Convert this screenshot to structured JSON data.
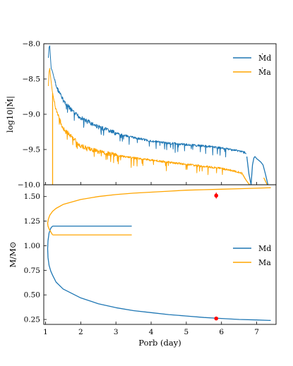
{
  "chart_data": [
    {
      "type": "line",
      "panel": "top",
      "xlabel": "",
      "ylabel": "log10|Ṁ|",
      "xlim": [
        0.95,
        7.55
      ],
      "ylim": [
        -10.0,
        -8.0
      ],
      "yticks": [
        -8.0,
        -8.5,
        -9.0,
        -9.5,
        -10.0
      ],
      "ytick_labels": [
        "−8.0",
        "−8.5",
        "−9.0",
        "−9.5",
        "−10.0"
      ],
      "legend_position": "top-right",
      "grid": false,
      "series": [
        {
          "name": "Ṁd",
          "color": "#1f77b4",
          "noisy": true,
          "x": [
            1.08,
            1.1,
            1.12,
            1.14,
            1.16,
            1.18,
            1.2,
            1.3,
            1.5,
            1.8,
            2.0,
            2.5,
            3.0,
            3.5,
            4.0,
            4.5,
            5.0,
            5.5,
            6.0,
            6.5,
            6.7
          ],
          "y": [
            -8.2,
            -8.05,
            -8.03,
            -8.2,
            -8.35,
            -8.37,
            -8.4,
            -8.6,
            -8.8,
            -8.98,
            -9.05,
            -9.18,
            -9.27,
            -9.33,
            -9.38,
            -9.41,
            -9.43,
            -9.45,
            -9.48,
            -9.52,
            -9.55
          ]
        },
        {
          "name": "Ṁd (late branch)",
          "color": "#1f77b4",
          "noisy": false,
          "x": [
            6.72,
            6.78,
            6.84,
            6.88,
            6.92,
            6.95,
            7.0,
            7.05,
            7.12,
            7.18,
            7.25,
            7.32
          ],
          "y": [
            -9.6,
            -9.85,
            -10.0,
            -9.72,
            -9.62,
            -9.6,
            -9.63,
            -9.65,
            -9.68,
            -9.72,
            -9.85,
            -10.0
          ]
        },
        {
          "name": "Ṁa",
          "color": "#ffa500",
          "noisy": true,
          "x": [
            1.08,
            1.1,
            1.12,
            1.15,
            1.2,
            1.3,
            1.5,
            2.0,
            2.5,
            3.0,
            3.5,
            4.0,
            4.5,
            5.0,
            5.5,
            6.0,
            6.5,
            6.6
          ],
          "y": [
            -8.6,
            -8.4,
            -8.35,
            -8.5,
            -8.7,
            -8.95,
            -9.2,
            -9.45,
            -9.53,
            -9.58,
            -9.62,
            -9.65,
            -9.68,
            -9.71,
            -9.74,
            -9.77,
            -9.82,
            -9.85
          ]
        },
        {
          "name": "Ṁa (late branch)",
          "color": "#ffa500",
          "noisy": false,
          "x": [
            6.6,
            6.68,
            6.75,
            6.8
          ],
          "y": [
            -9.85,
            -9.92,
            -9.97,
            -10.0
          ]
        },
        {
          "name": "Ṁa (drop)",
          "color": "#ffa500",
          "noisy": false,
          "x": [
            1.2,
            1.2
          ],
          "y": [
            -8.7,
            -10.0
          ]
        },
        {
          "name": "Ṁa (tail)",
          "color": "#ffa500",
          "noisy": false,
          "x": [
            7.2,
            7.25,
            7.3
          ],
          "y": [
            -9.9,
            -9.95,
            -10.0
          ]
        }
      ],
      "legend": [
        {
          "label": "Ṁd",
          "color": "#1f77b4"
        },
        {
          "label": "Ṁa",
          "color": "#ffa500"
        }
      ]
    },
    {
      "type": "line",
      "panel": "bottom",
      "xlabel": "Porb (day)",
      "ylabel": "M/M⊙",
      "xlim": [
        0.95,
        7.55
      ],
      "ylim": [
        0.2,
        1.62
      ],
      "xticks": [
        1,
        2,
        3,
        4,
        5,
        6,
        7
      ],
      "yticks": [
        0.25,
        0.5,
        0.75,
        1.0,
        1.25,
        1.5
      ],
      "ytick_labels": [
        "0.25",
        "0.50",
        "0.75",
        "1.00",
        "1.25",
        "1.50"
      ],
      "legend_position": "center-right",
      "grid": false,
      "series": [
        {
          "name": "Md",
          "color": "#1f77b4",
          "x": [
            1.2,
            1.15,
            1.1,
            1.07,
            1.06,
            1.07,
            1.1,
            1.15,
            1.2,
            1.3,
            1.5,
            2.0,
            2.5,
            3.0,
            3.5,
            4.0,
            4.5,
            5.0,
            5.5,
            6.0,
            6.5,
            7.0,
            7.4
          ],
          "y": [
            1.2,
            1.18,
            1.13,
            1.05,
            0.97,
            0.88,
            0.8,
            0.74,
            0.7,
            0.63,
            0.56,
            0.47,
            0.41,
            0.37,
            0.34,
            0.32,
            0.3,
            0.285,
            0.27,
            0.26,
            0.25,
            0.245,
            0.24
          ]
        },
        {
          "name": "Md (plateau)",
          "color": "#1f77b4",
          "x": [
            1.2,
            3.45
          ],
          "y": [
            1.2,
            1.2
          ]
        },
        {
          "name": "Ma",
          "color": "#ffa500",
          "x": [
            1.2,
            1.15,
            1.1,
            1.07,
            1.06,
            1.08,
            1.12,
            1.2,
            1.3,
            1.5,
            2.0,
            2.5,
            3.0,
            3.5,
            4.0,
            4.5,
            5.0,
            5.5,
            6.0,
            6.5,
            7.0,
            7.4
          ],
          "y": [
            1.11,
            1.14,
            1.17,
            1.2,
            1.23,
            1.27,
            1.31,
            1.35,
            1.38,
            1.42,
            1.47,
            1.5,
            1.52,
            1.535,
            1.545,
            1.555,
            1.565,
            1.57,
            1.575,
            1.58,
            1.585,
            1.59
          ]
        },
        {
          "name": "Ma (plateau)",
          "color": "#ffa500",
          "x": [
            1.2,
            3.45
          ],
          "y": [
            1.11,
            1.11
          ]
        }
      ],
      "points": [
        {
          "x": 5.85,
          "y": 1.51,
          "err": 0.03,
          "color": "#ff0000"
        },
        {
          "x": 5.85,
          "y": 0.26,
          "err": 0.01,
          "color": "#ff0000"
        }
      ],
      "legend": [
        {
          "label": "Md",
          "color": "#1f77b4"
        },
        {
          "label": "Ma",
          "color": "#ffa500"
        }
      ]
    }
  ]
}
